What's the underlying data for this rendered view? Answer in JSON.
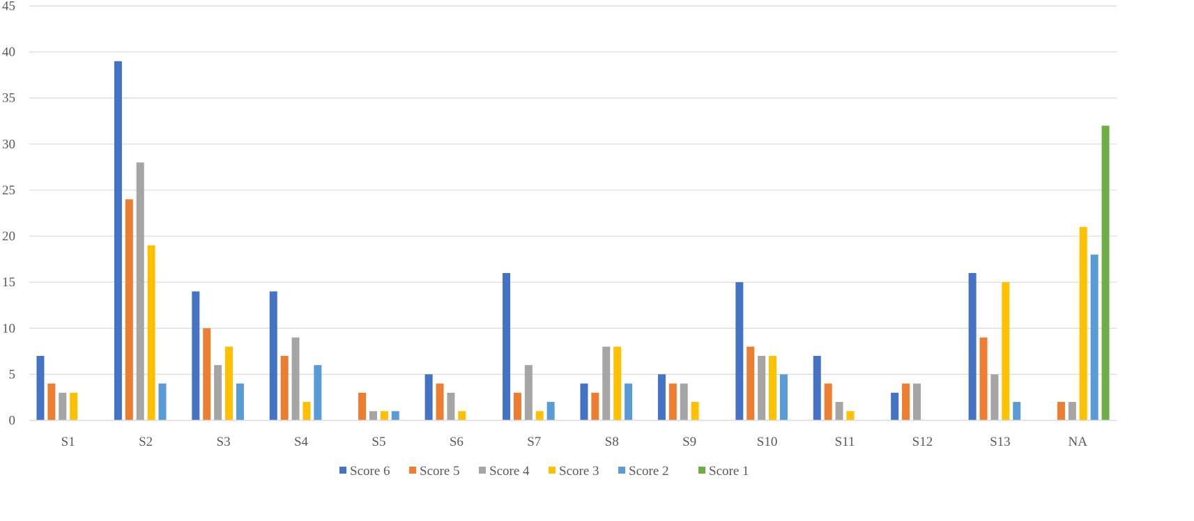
{
  "chart_data": {
    "type": "bar",
    "categories": [
      "S1",
      "S2",
      "S3",
      "S4",
      "S5",
      "S6",
      "S7",
      "S8",
      "S9",
      "S10",
      "S11",
      "S12",
      "S13",
      "NA"
    ],
    "series": [
      {
        "name": "Score 6",
        "color": "#4472C4",
        "values": [
          7,
          39,
          14,
          14,
          0,
          5,
          16,
          4,
          5,
          15,
          7,
          3,
          16,
          0
        ]
      },
      {
        "name": "Score 5",
        "color": "#ED7D31",
        "values": [
          4,
          24,
          10,
          7,
          3,
          4,
          3,
          3,
          4,
          8,
          4,
          4,
          9,
          2
        ]
      },
      {
        "name": "Score 4",
        "color": "#A5A5A5",
        "values": [
          3,
          28,
          6,
          9,
          1,
          3,
          6,
          8,
          4,
          7,
          2,
          4,
          5,
          2
        ]
      },
      {
        "name": "Score 3",
        "color": "#FFC000",
        "values": [
          3,
          19,
          8,
          2,
          1,
          1,
          1,
          8,
          2,
          7,
          1,
          0,
          15,
          21
        ]
      },
      {
        "name": "Score 2",
        "color": "#5B9BD5",
        "values": [
          0,
          4,
          4,
          6,
          1,
          0,
          2,
          4,
          0,
          5,
          0,
          0,
          2,
          18
        ]
      },
      {
        "name": "Score 1",
        "color": "#70AD47",
        "values": [
          0,
          0,
          0,
          0,
          0,
          0,
          0,
          0,
          0,
          0,
          0,
          0,
          0,
          32
        ]
      }
    ],
    "yticks": [
      "0",
      "5",
      "10",
      "15",
      "20",
      "25",
      "30",
      "35",
      "40",
      "45"
    ],
    "ylim": [
      0,
      45
    ],
    "grid": true,
    "legend_position": "bottom"
  }
}
